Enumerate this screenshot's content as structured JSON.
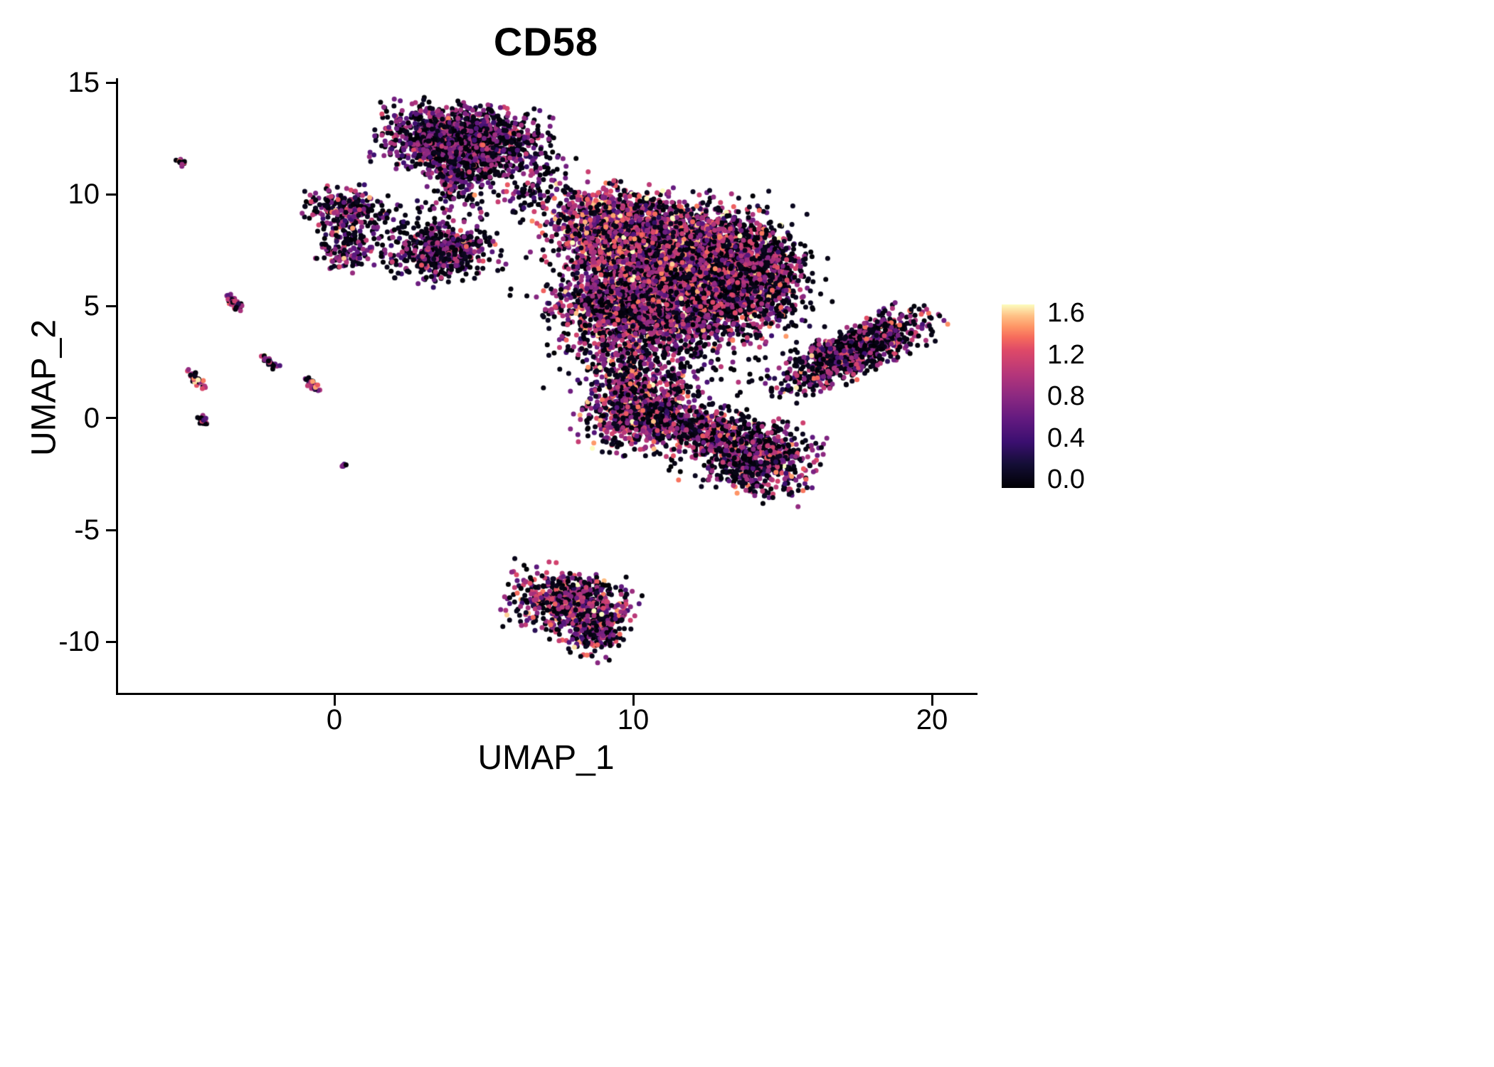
{
  "figure": {
    "background": "#FFFFFF",
    "axis_color": "#000000",
    "text_color": "#000000"
  },
  "chart_data": {
    "type": "scatter",
    "title": "CD58",
    "xlabel": "UMAP_1",
    "ylabel": "UMAP_2",
    "xlim": [
      -7.3,
      21.4
    ],
    "ylim": [
      -12.3,
      15.1
    ],
    "grid": false,
    "x_ticks": {
      "labels": [
        "0",
        "10",
        "20"
      ],
      "values": [
        0,
        10,
        20
      ]
    },
    "y_ticks": {
      "labels": [
        "15",
        "10",
        "5",
        "0",
        "-5",
        "-10"
      ],
      "values": [
        15,
        10,
        5,
        0,
        -5,
        -10
      ]
    },
    "legend": {
      "position": "right",
      "ticks": [
        "1.6",
        "1.2",
        "0.8",
        "0.4",
        "0.0"
      ],
      "values": [
        1.6,
        1.2,
        0.8,
        0.4,
        0.0
      ],
      "vmin": 0.0,
      "vmax": 1.6
    },
    "colormap": {
      "name": "magma",
      "stops": [
        {
          "t": 0.0,
          "color": "#000004"
        },
        {
          "t": 0.13,
          "color": "#140e36"
        },
        {
          "t": 0.25,
          "color": "#3b0f70"
        },
        {
          "t": 0.38,
          "color": "#641a80"
        },
        {
          "t": 0.5,
          "color": "#8c2981"
        },
        {
          "t": 0.62,
          "color": "#b5367a"
        },
        {
          "t": 0.75,
          "color": "#de4968"
        },
        {
          "t": 0.82,
          "color": "#f66b5c"
        },
        {
          "t": 0.88,
          "color": "#fe9666"
        },
        {
          "t": 0.94,
          "color": "#fec287"
        },
        {
          "t": 1.0,
          "color": "#fcfdbf"
        }
      ]
    },
    "seed": 20240258,
    "clusters": [
      {
        "name": "top-blob",
        "cx": 4.3,
        "cy": 12.45,
        "sx": 1.25,
        "sy": 0.72,
        "rot": -8,
        "n": 1500,
        "p0": 0.5,
        "m": 0.78,
        "s": 0.25
      },
      {
        "name": "top-blob-tail",
        "cx": 4.05,
        "cy": 10.8,
        "sx": 0.55,
        "sy": 0.8,
        "rot": 0,
        "n": 260,
        "p0": 0.55,
        "m": 0.75,
        "s": 0.25
      },
      {
        "name": "top-bridge",
        "cx": 6.6,
        "cy": 10.3,
        "sx": 1.1,
        "sy": 0.75,
        "rot": 0,
        "n": 130,
        "p0": 0.62,
        "m": 0.75,
        "s": 0.25
      },
      {
        "name": "left-islet-upper",
        "cx": 0.35,
        "cy": 9.4,
        "sx": 0.62,
        "sy": 0.45,
        "rot": 0,
        "n": 210,
        "p0": 0.5,
        "m": 0.85,
        "s": 0.3
      },
      {
        "name": "left-islet-lower",
        "cx": 0.45,
        "cy": 7.7,
        "sx": 0.5,
        "sy": 0.55,
        "rot": 0,
        "n": 150,
        "p0": 0.55,
        "m": 0.78,
        "s": 0.26
      },
      {
        "name": "islet-sparse",
        "cx": 1.7,
        "cy": 8.5,
        "sx": 0.8,
        "sy": 0.7,
        "rot": 0,
        "n": 60,
        "p0": 0.7,
        "m": 0.7,
        "s": 0.25
      },
      {
        "name": "mid-islet",
        "cx": 3.6,
        "cy": 7.4,
        "sx": 0.85,
        "sy": 0.62,
        "rot": 12,
        "n": 520,
        "p0": 0.52,
        "m": 0.78,
        "s": 0.26
      },
      {
        "name": "main-upper-left",
        "cx": 9.2,
        "cy": 8.6,
        "sx": 1.05,
        "sy": 0.85,
        "rot": 0,
        "n": 950,
        "p0": 0.32,
        "m": 0.98,
        "s": 0.32
      },
      {
        "name": "main-upper",
        "cx": 11.6,
        "cy": 7.6,
        "sx": 1.5,
        "sy": 1.05,
        "rot": 0,
        "n": 1900,
        "p0": 0.38,
        "m": 0.95,
        "s": 0.3
      },
      {
        "name": "main-center",
        "cx": 10.2,
        "cy": 5.1,
        "sx": 1.35,
        "sy": 1.05,
        "rot": 0,
        "n": 1600,
        "p0": 0.4,
        "m": 0.92,
        "s": 0.3
      },
      {
        "name": "main-right",
        "cx": 12.9,
        "cy": 5.9,
        "sx": 1.2,
        "sy": 1.15,
        "rot": 0,
        "n": 1250,
        "p0": 0.42,
        "m": 0.9,
        "s": 0.3
      },
      {
        "name": "main-right-edge",
        "cx": 14.3,
        "cy": 6.4,
        "sx": 0.75,
        "sy": 1.05,
        "rot": 0,
        "n": 430,
        "p0": 0.66,
        "m": 0.8,
        "s": 0.25
      },
      {
        "name": "main-halo",
        "cx": 11.4,
        "cy": 5.6,
        "sx": 2.3,
        "sy": 1.95,
        "rot": 0,
        "n": 620,
        "p0": 0.75,
        "m": 0.75,
        "s": 0.25
      },
      {
        "name": "main-lower-halo",
        "cx": 10.6,
        "cy": 2.6,
        "sx": 1.3,
        "sy": 0.85,
        "rot": 0,
        "n": 190,
        "p0": 0.62,
        "m": 0.8,
        "s": 0.25
      },
      {
        "name": "right-arm",
        "cx": 17.35,
        "cy": 3.0,
        "sx": 1.4,
        "sy": 0.48,
        "rot": 33,
        "n": 950,
        "p0": 0.52,
        "m": 0.82,
        "s": 0.28
      },
      {
        "name": "lower-mid",
        "cx": 10.3,
        "cy": 0.3,
        "sx": 1.0,
        "sy": 0.85,
        "rot": 0,
        "n": 780,
        "p0": 0.42,
        "m": 0.92,
        "s": 0.3
      },
      {
        "name": "lower-mid-tail",
        "cx": 9.7,
        "cy": 1.8,
        "sx": 0.45,
        "sy": 0.7,
        "rot": 0,
        "n": 200,
        "p0": 0.46,
        "m": 0.88,
        "s": 0.3
      },
      {
        "name": "bridge-lower",
        "cx": 12.2,
        "cy": -0.5,
        "sx": 0.85,
        "sy": 0.5,
        "rot": -15,
        "n": 260,
        "p0": 0.46,
        "m": 0.85,
        "s": 0.3
      },
      {
        "name": "lower-right",
        "cx": 13.9,
        "cy": -1.6,
        "sx": 1.05,
        "sy": 0.8,
        "rot": -20,
        "n": 850,
        "p0": 0.52,
        "m": 0.85,
        "s": 0.3
      },
      {
        "name": "bottom",
        "cx": 7.9,
        "cy": -8.3,
        "sx": 0.95,
        "sy": 0.72,
        "rot": -12,
        "n": 720,
        "p0": 0.42,
        "m": 0.92,
        "s": 0.3
      },
      {
        "name": "bottom-tail",
        "cx": 8.75,
        "cy": -9.6,
        "sx": 0.42,
        "sy": 0.55,
        "rot": -30,
        "n": 160,
        "p0": 0.46,
        "m": 0.85,
        "s": 0.3
      },
      {
        "name": "streak-1",
        "cx": -5.1,
        "cy": 11.4,
        "sx": 0.1,
        "sy": 0.06,
        "rot": -50,
        "n": 14,
        "p0": 0.25,
        "m": 1.05,
        "s": 0.3
      },
      {
        "name": "streak-2",
        "cx": -3.35,
        "cy": 5.15,
        "sx": 0.2,
        "sy": 0.07,
        "rot": -50,
        "n": 45,
        "p0": 0.45,
        "m": 0.9,
        "s": 0.3
      },
      {
        "name": "streak-3",
        "cx": -4.6,
        "cy": 1.75,
        "sx": 0.22,
        "sy": 0.08,
        "rot": -50,
        "n": 40,
        "p0": 0.35,
        "m": 1.05,
        "s": 0.3
      },
      {
        "name": "streak-4",
        "cx": -2.2,
        "cy": 2.55,
        "sx": 0.18,
        "sy": 0.07,
        "rot": -50,
        "n": 32,
        "p0": 0.45,
        "m": 0.9,
        "s": 0.3
      },
      {
        "name": "streak-5",
        "cx": -0.75,
        "cy": 1.5,
        "sx": 0.2,
        "sy": 0.08,
        "rot": -50,
        "n": 30,
        "p0": 0.35,
        "m": 1.05,
        "s": 0.3
      },
      {
        "name": "streak-6",
        "cx": -4.4,
        "cy": -0.1,
        "sx": 0.12,
        "sy": 0.08,
        "rot": -50,
        "n": 22,
        "p0": 0.45,
        "m": 0.9,
        "s": 0.3
      },
      {
        "name": "micro-dot",
        "cx": 0.35,
        "cy": -2.1,
        "sx": 0.06,
        "sy": 0.05,
        "rot": 0,
        "n": 6,
        "p0": 0.7,
        "m": 0.6,
        "s": 0.2
      }
    ]
  }
}
